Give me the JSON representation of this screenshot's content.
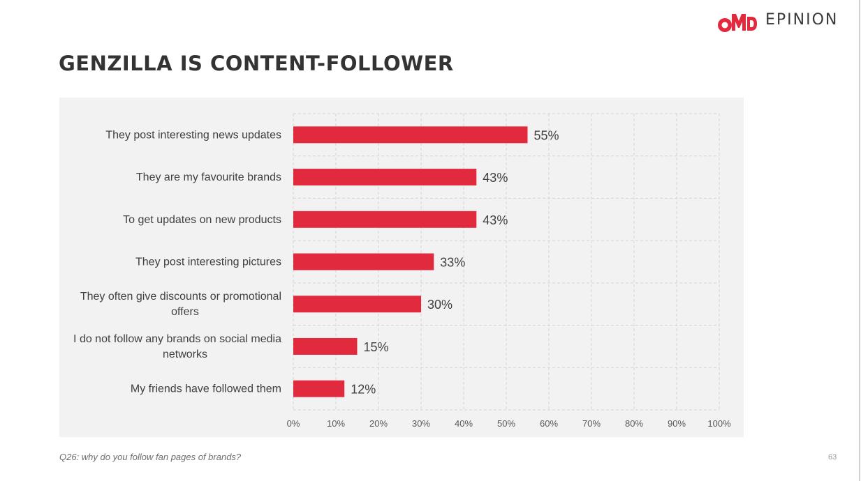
{
  "brand": {
    "omd_mark": "OMD",
    "name": "EPINION",
    "color": "#e22a3f"
  },
  "page": {
    "title": "GENZILLA IS CONTENT-FOLLOWER",
    "footnote": "Q26: why do you follow fan pages of brands?",
    "page_number": "63"
  },
  "chart_data": {
    "type": "bar",
    "orientation": "horizontal",
    "categories": [
      [
        "They post interesting news updates"
      ],
      [
        "They are my favourite brands"
      ],
      [
        "To get updates on new products"
      ],
      [
        "They post interesting pictures"
      ],
      [
        "They often give discounts or promotional",
        "offers"
      ],
      [
        "I do not follow any brands on social media",
        "networks"
      ],
      [
        "My friends have followed them"
      ]
    ],
    "values": [
      55,
      43,
      43,
      33,
      30,
      15,
      12
    ],
    "data_labels": [
      "55%",
      "43%",
      "43%",
      "33%",
      "30%",
      "15%",
      "12%"
    ],
    "xlim": [
      0,
      100
    ],
    "xticks": [
      0,
      10,
      20,
      30,
      40,
      50,
      60,
      70,
      80,
      90,
      100
    ],
    "xtick_labels": [
      "0%",
      "10%",
      "20%",
      "30%",
      "40%",
      "50%",
      "60%",
      "70%",
      "80%",
      "90%",
      "100%"
    ],
    "grid": "dashed",
    "bar_color": "#e22a3f",
    "background": "#f2f2f2"
  }
}
